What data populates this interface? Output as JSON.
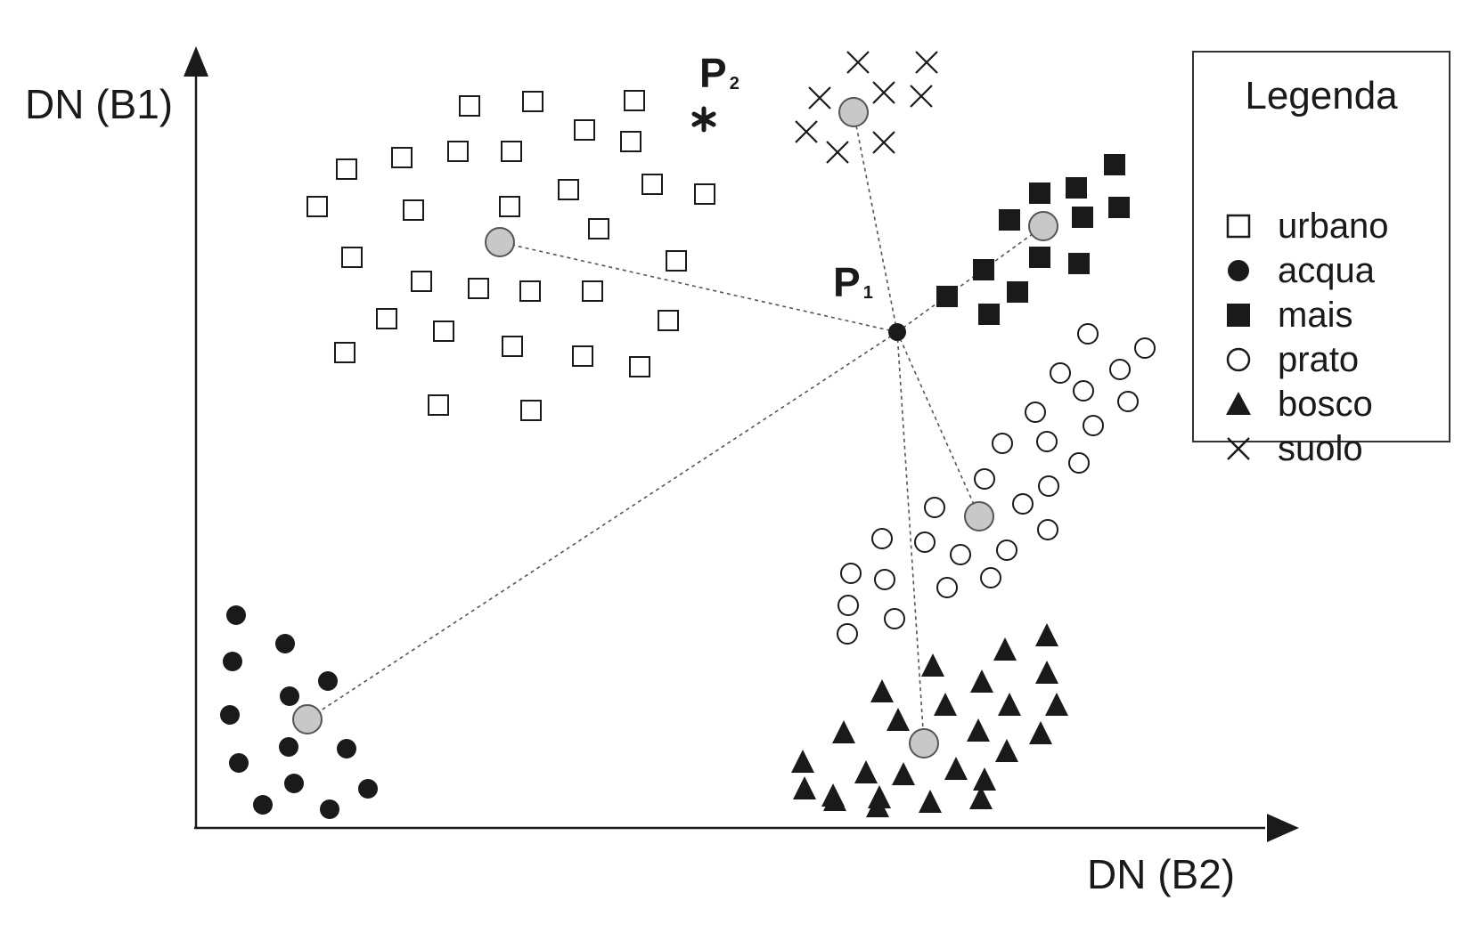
{
  "axes": {
    "ylabel": "DN (B1)",
    "xlabel": "DN (B2)"
  },
  "legend": {
    "title": "Legenda",
    "items": [
      {
        "label": "urbano",
        "marker": "open-square"
      },
      {
        "label": "acqua",
        "marker": "filled-circle"
      },
      {
        "label": "mais",
        "marker": "filled-square"
      },
      {
        "label": "prato",
        "marker": "open-circle"
      },
      {
        "label": "bosco",
        "marker": "filled-triangle"
      },
      {
        "label": "suolo",
        "marker": "cross"
      }
    ]
  },
  "points": {
    "p1": {
      "letter": "P",
      "sub": "1"
    },
    "p2": {
      "letter": "P",
      "sub": "2"
    }
  },
  "colors": {
    "ink": "#1a1a1a",
    "centroid_fill": "#c8c8c8",
    "line": "#555555"
  }
}
